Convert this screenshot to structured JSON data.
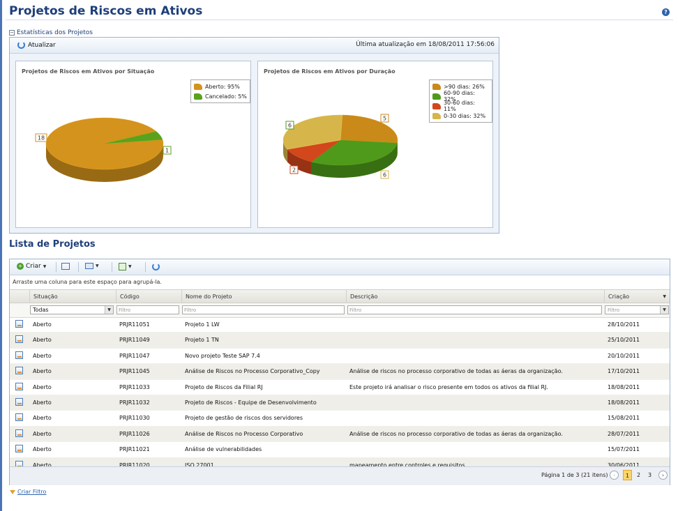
{
  "page": {
    "title": "Projetos de Riscos em Ativos",
    "help_icon": "help-icon"
  },
  "stats": {
    "section_label": "Estatísticas dos Projetos",
    "refresh_label": "Atualizar",
    "last_update": "Última atualização em 18/08/2011 17:56:06"
  },
  "chart_data": [
    {
      "type": "pie",
      "title": "Projetos de Riscos em Ativos por Situação",
      "categories": [
        "Aberto",
        "Cancelado"
      ],
      "values": [
        18,
        1
      ],
      "legend": [
        "Aberto: 95%",
        "Cancelado: 5%"
      ],
      "colors": [
        "#d4931c",
        "#5aa21e"
      ],
      "data_labels": [
        "18",
        "1"
      ],
      "legend_position": "top-right"
    },
    {
      "type": "pie",
      "title": "Projetos de Riscos em Ativos por Duração",
      "categories": [
        ">90 dias",
        "60-90 dias",
        "30-60 dias",
        "0-30 dias"
      ],
      "values": [
        5,
        6,
        2,
        6
      ],
      "legend": [
        ">90 dias: 26%",
        "60-90 dias: 32%",
        "30-60 dias: 11%",
        "0-30 dias: 32%"
      ],
      "colors": [
        "#c98a1a",
        "#4f9a1a",
        "#d2471c",
        "#d6b64a"
      ],
      "data_labels": [
        "5",
        "6",
        "2",
        "6"
      ],
      "legend_position": "top-right"
    }
  ],
  "list": {
    "title": "Lista de Projetos",
    "toolbar": {
      "create_label": "Criar"
    },
    "group_hint": "Arraste uma coluna para este espaço para agrupá-la.",
    "columns": [
      "Situação",
      "Código",
      "Nome do Projeto",
      "Descrição",
      "Criação"
    ],
    "filters": {
      "situacao_selected": "Todas",
      "placeholder": "Filtro"
    },
    "rows": [
      {
        "situacao": "Aberto",
        "codigo": "PRJR11051",
        "nome": "Projeto 1 LW",
        "descricao": "",
        "criacao": "28/10/2011"
      },
      {
        "situacao": "Aberto",
        "codigo": "PRJR11049",
        "nome": "Projeto 1 TN",
        "descricao": "",
        "criacao": "25/10/2011"
      },
      {
        "situacao": "Aberto",
        "codigo": "PRJR11047",
        "nome": "Novo projeto Teste SAP 7.4",
        "descricao": "",
        "criacao": "20/10/2011"
      },
      {
        "situacao": "Aberto",
        "codigo": "PRJR11045",
        "nome": "Análise de Riscos no Processo Corporativo_Copy",
        "descricao": "Análise de riscos no processo corporativo de todas as áeras da organização.",
        "criacao": "17/10/2011"
      },
      {
        "situacao": "Aberto",
        "codigo": "PRJR11033",
        "nome": "Projeto de Riscos da Filial RJ",
        "descricao": "Este projeto irá analisar o risco presente em todos os ativos da filial RJ.",
        "criacao": "18/08/2011"
      },
      {
        "situacao": "Aberto",
        "codigo": "PRJR11032",
        "nome": "Projeto de Riscos - Equipe de Desenvolvimento",
        "descricao": "",
        "criacao": "18/08/2011"
      },
      {
        "situacao": "Aberto",
        "codigo": "PRJR11030",
        "nome": "Projeto de gestão de riscos dos servidores",
        "descricao": "",
        "criacao": "15/08/2011"
      },
      {
        "situacao": "Aberto",
        "codigo": "PRJR11026",
        "nome": "Análise de Riscos no Processo Corporativo",
        "descricao": "Análise de riscos no processo corporativo de todas as áeras da organização.",
        "criacao": "28/07/2011"
      },
      {
        "situacao": "Aberto",
        "codigo": "PRJR11021",
        "nome": "Análise de vulnerabilidades",
        "descricao": "",
        "criacao": "15/07/2011"
      },
      {
        "situacao": "Aberto",
        "codigo": "PRJR11020",
        "nome": "ISO 27001",
        "descricao": "mapeamento entre controles e requisitos",
        "criacao": "30/06/2011"
      }
    ],
    "pager": {
      "info": "Página 1 de 3 (21 itens)",
      "pages": [
        "1",
        "2",
        "3"
      ],
      "current": "1"
    },
    "create_filter_label": "Criar Filtro"
  }
}
